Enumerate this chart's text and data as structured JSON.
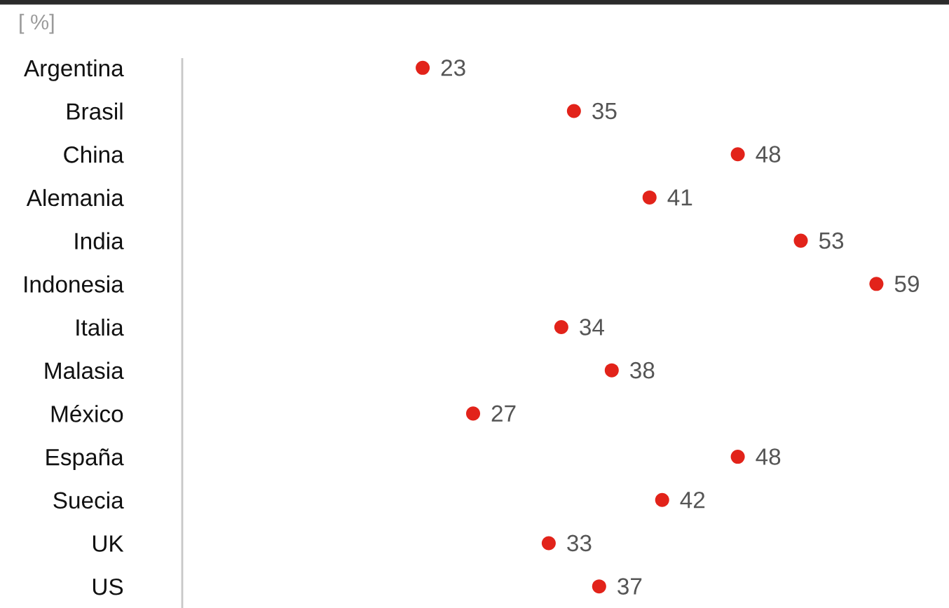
{
  "chart_data": {
    "type": "scatter",
    "orientation": "horizontal",
    "xlabel": "[ %]",
    "categories": [
      "Argentina",
      "Brasil",
      "China",
      "Alemania",
      "India",
      "Indonesia",
      "Italia",
      "Malasia",
      "México",
      "España",
      "Suecia",
      "UK",
      "US"
    ],
    "values": [
      23,
      35,
      48,
      41,
      53,
      59,
      34,
      38,
      27,
      48,
      42,
      33,
      37
    ],
    "color": "#e2231a",
    "marker": "circle",
    "data_labels": true,
    "tick_labels": "y"
  }
}
